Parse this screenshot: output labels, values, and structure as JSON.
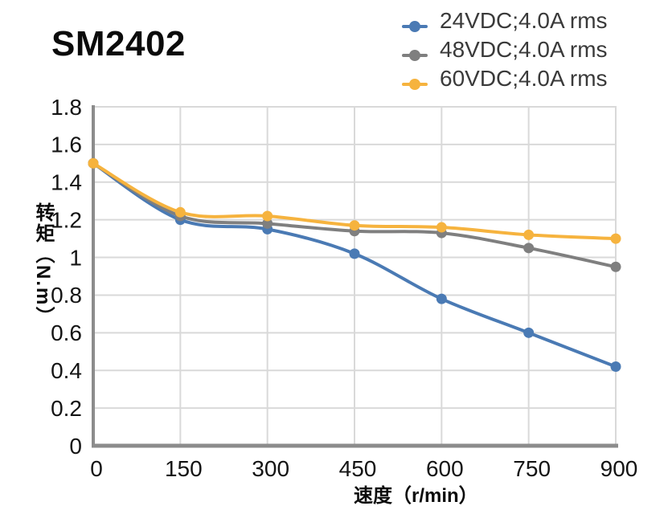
{
  "chart_data": {
    "type": "line",
    "title": "SM2402",
    "xlabel": "速度（r/min）",
    "ylabel": "转矩（N.m）",
    "x": [
      0,
      150,
      300,
      450,
      600,
      750,
      900
    ],
    "xlim": [
      0,
      900
    ],
    "ylim": [
      0,
      1.8
    ],
    "xticks": [
      0,
      150,
      300,
      450,
      600,
      750,
      900
    ],
    "xtick_labels": [
      "0",
      "150",
      "300",
      "450",
      "600",
      "750",
      "900"
    ],
    "yticks": [
      0,
      0.2,
      0.4,
      0.6,
      0.8,
      1,
      1.2,
      1.4,
      1.6,
      1.8
    ],
    "ytick_labels": [
      "0",
      "0.2",
      "0.4",
      "0.6",
      "0.8",
      "1",
      "1.2",
      "1.4",
      "1.6",
      "1.8"
    ],
    "grid": true,
    "line_style": "smooth",
    "marker": "circle",
    "legend_position": "top-right",
    "series": [
      {
        "name": "24VDC;4.0A rms",
        "color": "#4a7ab4",
        "values": [
          1.5,
          1.2,
          1.15,
          1.02,
          0.78,
          0.6,
          0.42
        ]
      },
      {
        "name": "48VDC;4.0A rms",
        "color": "#7f7f7f",
        "values": [
          1.5,
          1.22,
          1.18,
          1.14,
          1.13,
          1.05,
          0.95
        ]
      },
      {
        "name": "60VDC;4.0A rms",
        "color": "#f6b33e",
        "values": [
          1.5,
          1.24,
          1.22,
          1.17,
          1.16,
          1.12,
          1.1
        ]
      }
    ],
    "colors": {
      "grid": "#d9d9d9",
      "axis": "#8c8c8c",
      "tick_text": "#141414",
      "legend_text": "#3a3a3a",
      "title_text": "#0b0b0b"
    }
  }
}
